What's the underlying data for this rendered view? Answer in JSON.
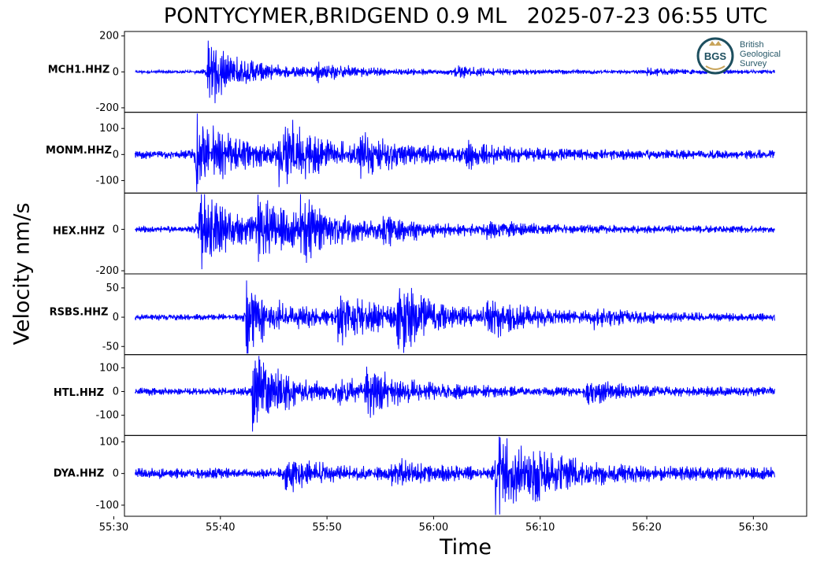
{
  "chart_data": {
    "type": "line",
    "title": "PONTYCYMER,BRIDGEND 0.9 ML   2025-07-23 06:55 UTC",
    "xlabel": "Time",
    "ylabel": "Velocity nm/s",
    "x_ticks": [
      "55:30",
      "55:40",
      "55:50",
      "56:00",
      "56:10",
      "56:20",
      "56:30"
    ],
    "x_range_seconds": [
      -29,
      35
    ],
    "trace_span_seconds": [
      -28,
      32
    ],
    "line_color": "#0000ff",
    "grid": false,
    "panels": [
      {
        "station": "MCH1.HHZ",
        "ylim": [
          -225,
          225
        ],
        "yticks": [
          -200,
          0,
          200
        ],
        "yticklabels": [
          "-200",
          "0",
          "200"
        ],
        "noise": 10,
        "events": [
          {
            "t": -21.2,
            "amp": 175
          },
          {
            "t": -11,
            "amp": 35
          },
          {
            "t": 2,
            "amp": 25
          },
          {
            "t": 20,
            "amp": 15
          }
        ]
      },
      {
        "station": "MONM.HHZ",
        "ylim": [
          -148,
          162
        ],
        "yticks": [
          -100,
          0,
          100
        ],
        "yticklabels": [
          "-100",
          "0",
          "100"
        ],
        "noise": 18,
        "events": [
          {
            "t": -22.3,
            "amp": 140
          },
          {
            "t": -14.5,
            "amp": 120
          },
          {
            "t": -7,
            "amp": 55
          },
          {
            "t": 3,
            "amp": 30
          }
        ]
      },
      {
        "station": "HEX.HHZ",
        "ylim": [
          -215,
          175
        ],
        "yticks": [
          -200,
          0
        ],
        "yticklabels": [
          "-200",
          "0"
        ],
        "noise": 18,
        "events": [
          {
            "t": -22,
            "amp": 170
          },
          {
            "t": -16.5,
            "amp": 110
          },
          {
            "t": -12.5,
            "amp": 90
          },
          {
            "t": -5,
            "amp": 45
          },
          {
            "t": 5,
            "amp": 20
          }
        ]
      },
      {
        "station": "RSBS.HHZ",
        "ylim": [
          -64,
          74
        ],
        "yticks": [
          -50,
          0,
          50
        ],
        "yticklabels": [
          "-50",
          "0",
          "50"
        ],
        "noise": 6,
        "events": [
          {
            "t": -17.6,
            "amp": 55
          },
          {
            "t": -9,
            "amp": 40
          },
          {
            "t": -3.5,
            "amp": 50
          },
          {
            "t": 5,
            "amp": 25
          },
          {
            "t": 15,
            "amp": 10
          }
        ]
      },
      {
        "station": "HTL.HHZ",
        "ylim": [
          -185,
          155
        ],
        "yticks": [
          -100,
          0,
          100
        ],
        "yticklabels": [
          "-100",
          "0",
          "100"
        ],
        "noise": 18,
        "events": [
          {
            "t": -17,
            "amp": 145
          },
          {
            "t": -9,
            "amp": 30
          },
          {
            "t": -6.5,
            "amp": 70
          },
          {
            "t": 14.2,
            "amp": 40
          }
        ]
      },
      {
        "station": "DYA.HHZ",
        "ylim": [
          -135,
          120
        ],
        "yticks": [
          -100,
          0,
          100
        ],
        "yticklabels": [
          "-100",
          "0",
          "100"
        ],
        "noise": 18,
        "events": [
          {
            "t": -14,
            "amp": 45
          },
          {
            "t": -4,
            "amp": 30
          },
          {
            "t": 5.8,
            "amp": 115
          },
          {
            "t": 9,
            "amp": 40
          }
        ]
      }
    ]
  },
  "logo": {
    "line1": "British",
    "line2": "Geological",
    "line3": "Survey",
    "mark": "BGS"
  }
}
